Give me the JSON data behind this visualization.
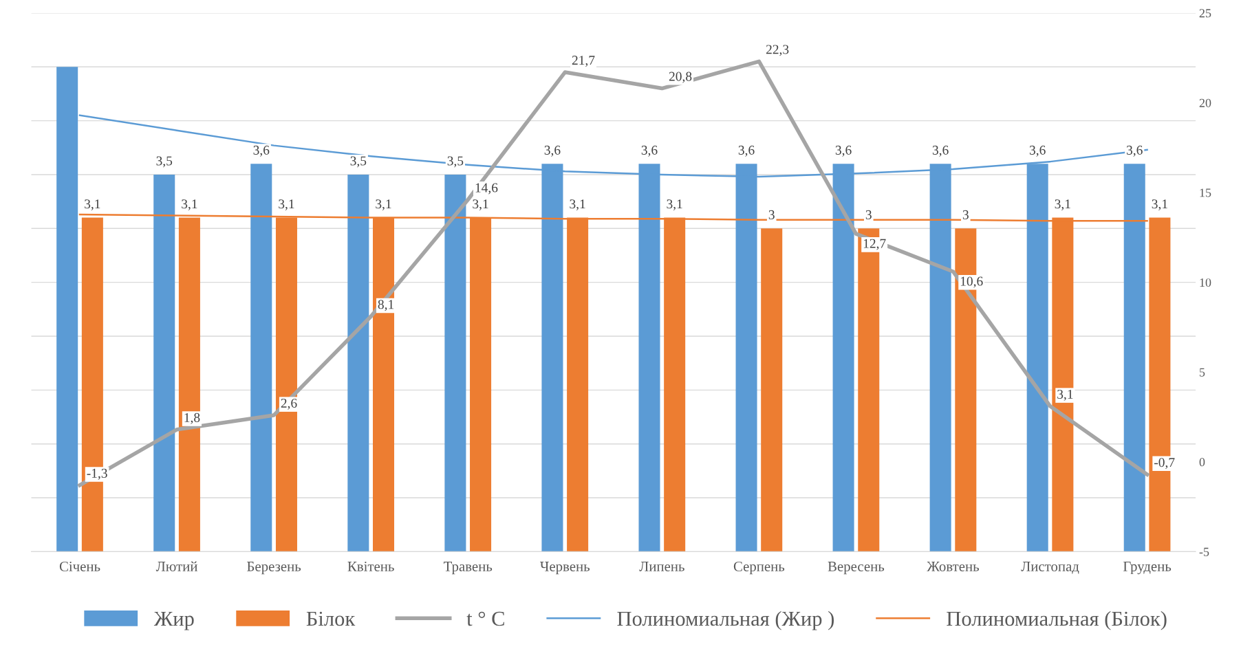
{
  "chart_data": {
    "type": "bar",
    "categories": [
      "Січень",
      "Лютий",
      "Березень",
      "Квітень",
      "Травень",
      "Червень",
      "Липень",
      "Серпень",
      "Вересень",
      "Жовтень",
      "Листопад",
      "Грудень"
    ],
    "series": [
      {
        "name": "Жир",
        "color": "#5b9bd5",
        "values": [
          4.5,
          3.5,
          3.6,
          3.5,
          3.5,
          3.6,
          3.6,
          3.6,
          3.6,
          3.6,
          3.6,
          3.6
        ],
        "value_labels": [
          null,
          "3,5",
          "3,6",
          "3,5",
          "3,5",
          "3,6",
          "3,6",
          "3,6",
          "3,6",
          "3,6",
          "3,6",
          "3,6"
        ]
      },
      {
        "name": "Білок",
        "color": "#ed7d31",
        "values": [
          3.1,
          3.1,
          3.1,
          3.1,
          3.1,
          3.1,
          3.1,
          3,
          3,
          3,
          3.1,
          3.1
        ],
        "value_labels": [
          "3,1",
          "3,1",
          "3,1",
          "3,1",
          "3,1",
          "3,1",
          "3,1",
          "3",
          "3",
          "3",
          "3,1",
          "3,1"
        ]
      },
      {
        "name": "t ° C",
        "type": "line",
        "axis": "y2",
        "color": "#a5a5a5",
        "values": [
          -1.3,
          1.8,
          2.6,
          8.1,
          14.6,
          21.7,
          20.8,
          22.3,
          12.7,
          10.6,
          3.1,
          -0.7
        ],
        "value_labels": [
          "-1,3",
          "1,8",
          "2,6",
          "8,1",
          "14,6",
          "21,7",
          "20,8",
          "22,3",
          "12,7",
          "10,6",
          "3,1",
          "-0,7"
        ]
      },
      {
        "name": "Полиномиальная (Жир )",
        "type": "line",
        "color": "#5b9bd5",
        "values": [
          4.05,
          3.91,
          3.77,
          3.67,
          3.59,
          3.53,
          3.5,
          3.48,
          3.51,
          3.55,
          3.62,
          3.73
        ]
      },
      {
        "name": "Полиномиальная (Білок)",
        "type": "line",
        "color": "#ed7d31",
        "values": [
          3.13,
          3.12,
          3.11,
          3.1,
          3.1,
          3.09,
          3.09,
          3.08,
          3.08,
          3.08,
          3.07,
          3.07
        ]
      }
    ],
    "ylim": [
      0,
      5
    ],
    "yticks": [
      {
        "value": 0,
        "label": null
      },
      {
        "value": 0.5,
        "label": null
      },
      {
        "value": 1,
        "label": null
      },
      {
        "value": 1.5,
        "label": null
      },
      {
        "value": 2,
        "label": null
      },
      {
        "value": 2.5,
        "label": null
      },
      {
        "value": 3,
        "label": null
      },
      {
        "value": 3.5,
        "label": null
      },
      {
        "value": 4,
        "label": null
      },
      {
        "value": 4.5,
        "label": null
      },
      {
        "value": 5,
        "label": null
      }
    ],
    "y2lim": [
      -5,
      25
    ],
    "y2ticks": [
      -5,
      0,
      5,
      10,
      15,
      20,
      25
    ],
    "grid": "y",
    "legend": "bottom",
    "marker": "none",
    "line_style": "solid"
  }
}
